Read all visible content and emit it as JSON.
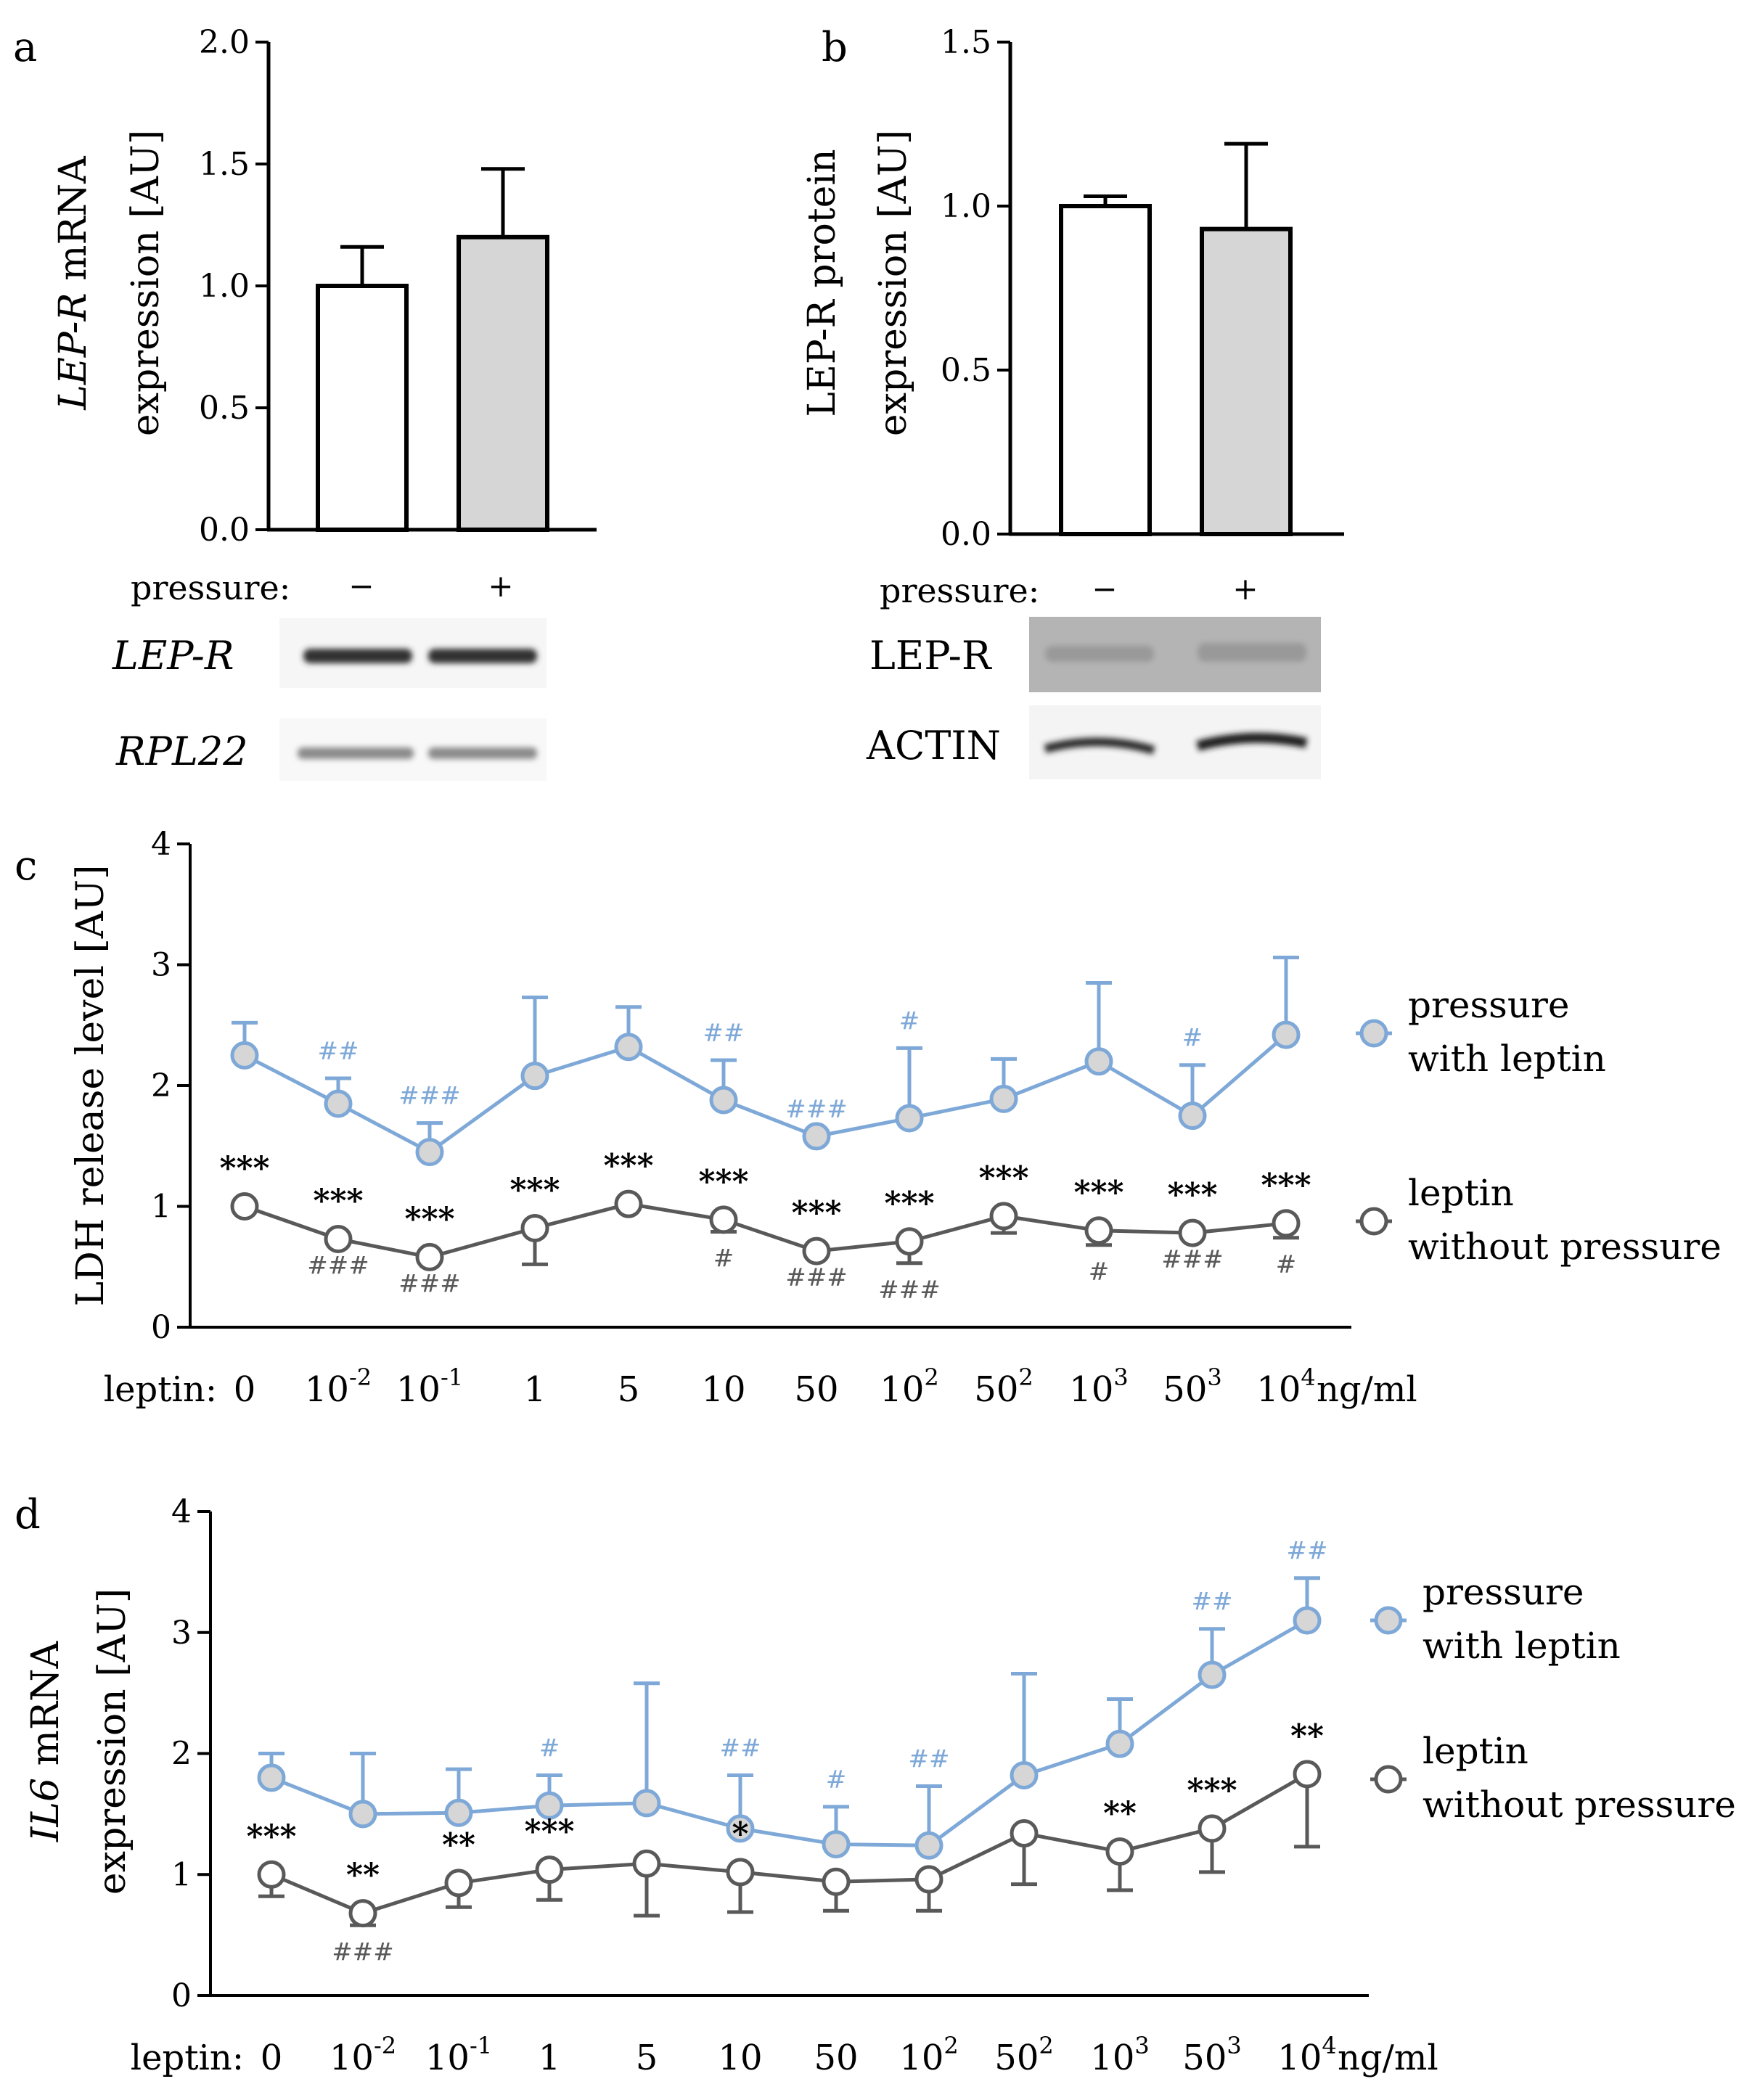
{
  "colors": {
    "pressure": "#7ea8d7",
    "pressure_marker_fill": "#d6d6d6",
    "no_pressure": "#595959",
    "bar_gray": "#d6d6d6",
    "axis": "#000000"
  },
  "panels": {
    "a": {
      "letter": "a",
      "pressure_label": "pressure:",
      "minus": "−",
      "plus": "+",
      "gel_labels": [
        "LEP-R",
        "RPL22"
      ]
    },
    "b": {
      "letter": "b",
      "pressure_label": "pressure:",
      "minus": "−",
      "plus": "+",
      "blot_labels": [
        "LEP-R",
        "ACTIN"
      ]
    },
    "c": {
      "letter": "c"
    },
    "d": {
      "letter": "d"
    }
  },
  "leptin_axis": {
    "prefix": "leptin:",
    "unit": "ng/ml",
    "ticks": [
      {
        "base": "0",
        "sup": ""
      },
      {
        "base": "10",
        "sup": "-2"
      },
      {
        "base": "10",
        "sup": "-1"
      },
      {
        "base": "1",
        "sup": ""
      },
      {
        "base": "5",
        "sup": ""
      },
      {
        "base": "10",
        "sup": ""
      },
      {
        "base": "50",
        "sup": ""
      },
      {
        "base": "10",
        "sup": "2"
      },
      {
        "base": "50",
        "sup": "2"
      },
      {
        "base": "10",
        "sup": "3"
      },
      {
        "base": "50",
        "sup": "3"
      },
      {
        "base": "10",
        "sup": "4"
      }
    ]
  },
  "chart_data": [
    {
      "id": "a",
      "type": "bar",
      "categories": [
        "−",
        "+"
      ],
      "values": [
        1.0,
        1.2
      ],
      "errors": [
        0.16,
        0.28
      ],
      "ylabel_italic": "LEP-R",
      "ylabel_rest": " mRNA",
      "ylabel_line2": "expression [AU]",
      "ylim": [
        0,
        2.0
      ],
      "yticks": [
        "0.0",
        "0.5",
        "1.0",
        "1.5",
        "2.0"
      ]
    },
    {
      "id": "b",
      "type": "bar",
      "categories": [
        "−",
        "+"
      ],
      "values": [
        1.0,
        0.93
      ],
      "errors": [
        0.03,
        0.26
      ],
      "ylabel_line1": "LEP-R protein",
      "ylabel_line2": "expression [AU]",
      "ylim": [
        0,
        1.5
      ],
      "yticks": [
        "0.0",
        "0.5",
        "1.0",
        "1.5"
      ]
    },
    {
      "id": "c",
      "type": "line",
      "ylabel": "LDH release level [AU]",
      "ylim": [
        0,
        4
      ],
      "yticks": [
        "0",
        "1",
        "2",
        "3",
        "4"
      ],
      "series": [
        {
          "name": "pressure with leptin",
          "legend": [
            "pressure",
            "with leptin"
          ],
          "values": [
            2.25,
            1.85,
            1.45,
            2.08,
            2.32,
            1.88,
            1.58,
            1.73,
            1.89,
            2.2,
            1.75,
            2.42
          ],
          "errors": [
            0.27,
            0.21,
            0.24,
            0.65,
            0.33,
            0.33,
            0.0,
            0.58,
            0.33,
            0.65,
            0.42,
            0.64
          ],
          "annotations": [
            "",
            "##",
            "###",
            "",
            "",
            "##",
            "###",
            "#",
            "",
            "",
            "#",
            ""
          ]
        },
        {
          "name": "leptin without pressure",
          "legend": [
            "leptin",
            "without pressure"
          ],
          "values": [
            1.0,
            0.73,
            0.58,
            0.82,
            1.02,
            0.89,
            0.63,
            0.71,
            0.92,
            0.8,
            0.78,
            0.86
          ],
          "errors": [
            0.0,
            0.0,
            0.0,
            0.3,
            0.0,
            0.1,
            0.0,
            0.18,
            0.14,
            0.12,
            0.0,
            0.12
          ],
          "stars": [
            "***",
            "***",
            "***",
            "***",
            "***",
            "***",
            "***",
            "***",
            "***",
            "***",
            "***",
            "***"
          ],
          "annotations": [
            "",
            "###",
            "###",
            "",
            "",
            "#",
            "###",
            "###",
            "",
            "#",
            "###",
            "#"
          ]
        }
      ]
    },
    {
      "id": "d",
      "type": "line",
      "ylabel_italic": "IL6",
      "ylabel_rest": " mRNA",
      "ylabel_line2": "expression [AU]",
      "ylim": [
        0,
        4
      ],
      "yticks": [
        "0",
        "1",
        "2",
        "3",
        "4"
      ],
      "series": [
        {
          "name": "pressure with leptin",
          "legend": [
            "pressure",
            "with leptin"
          ],
          "values": [
            1.8,
            1.5,
            1.51,
            1.57,
            1.59,
            1.38,
            1.25,
            1.24,
            1.82,
            2.08,
            2.65,
            3.1
          ],
          "errors": [
            0.2,
            0.5,
            0.36,
            0.25,
            0.99,
            0.44,
            0.31,
            0.49,
            0.84,
            0.37,
            0.38,
            0.35
          ],
          "annotations": [
            "",
            "",
            "",
            "#",
            "",
            "##",
            "#",
            "##",
            "",
            "",
            "##",
            "##"
          ]
        },
        {
          "name": "leptin without pressure",
          "legend": [
            "leptin",
            "without pressure"
          ],
          "values": [
            1.0,
            0.68,
            0.93,
            1.04,
            1.09,
            1.02,
            0.94,
            0.96,
            1.34,
            1.19,
            1.38,
            1.83
          ],
          "errors": [
            0.18,
            0.1,
            0.2,
            0.25,
            0.43,
            0.33,
            0.24,
            0.26,
            0.42,
            0.32,
            0.36,
            0.6
          ],
          "stars": [
            "***",
            "**",
            "**",
            "***",
            "",
            "*",
            "",
            "",
            "",
            "**",
            "***",
            "**"
          ],
          "annotations": [
            "",
            "###",
            "",
            "",
            "",
            "",
            "",
            "",
            "",
            "",
            "",
            ""
          ]
        }
      ]
    }
  ]
}
